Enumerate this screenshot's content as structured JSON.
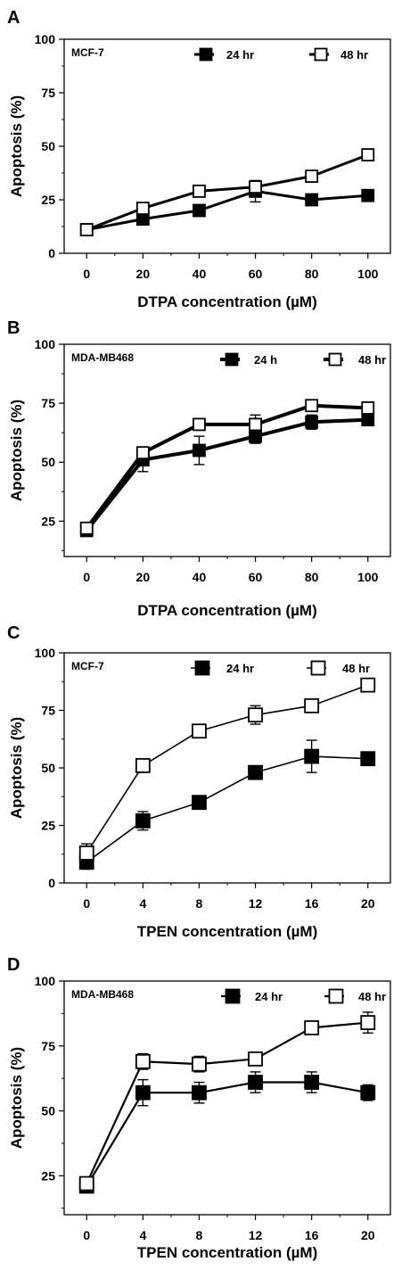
{
  "chart_data": [
    {
      "type": "line",
      "panel": "A",
      "cell_line": "MCF-7",
      "xlabel": "DTPA concentration (µM)",
      "ylabel": "Apoptosis (%)",
      "x": [
        0,
        20,
        40,
        60,
        80,
        100
      ],
      "xticks": [
        "0",
        "20",
        "40",
        "60",
        "80",
        "100"
      ],
      "yticks": [
        "0",
        "25",
        "50",
        "75",
        "100"
      ],
      "xlim": [
        -8,
        108
      ],
      "ylim": [
        0,
        100
      ],
      "legend": "top",
      "series": [
        {
          "name": "24 hr",
          "marker": "filled-square",
          "values": [
            11,
            16,
            20,
            29,
            25,
            27
          ],
          "errors": [
            1.5,
            1.5,
            1.5,
            5,
            1.5,
            1.5
          ]
        },
        {
          "name": "48 hr",
          "marker": "open-square",
          "values": [
            11,
            21,
            29,
            31,
            36,
            46
          ],
          "errors": [
            1.5,
            1.5,
            1.5,
            2.5,
            1.5,
            1.5
          ]
        }
      ]
    },
    {
      "type": "line",
      "panel": "B",
      "cell_line": "MDA-MB468",
      "xlabel": "DTPA concentration (µM)",
      "ylabel": "Apoptosis (%)",
      "x": [
        0,
        20,
        40,
        60,
        80,
        100
      ],
      "xticks": [
        "0",
        "20",
        "40",
        "60",
        "80",
        "100"
      ],
      "yticks": [
        "25",
        "50",
        "75",
        "100"
      ],
      "xlim": [
        -8,
        108
      ],
      "ylim": [
        10,
        100
      ],
      "legend": "top",
      "series": [
        {
          "name": "24 h",
          "marker": "filled-square",
          "values": [
            21,
            51,
            55,
            61,
            67,
            68
          ],
          "errors": [
            1.5,
            5,
            6,
            3,
            3,
            2
          ]
        },
        {
          "name": "48 hr",
          "marker": "open-square",
          "values": [
            22,
            54,
            66,
            66,
            74,
            73
          ],
          "errors": [
            1.5,
            2,
            2,
            4,
            2,
            2
          ]
        }
      ]
    },
    {
      "type": "line",
      "panel": "C",
      "cell_line": "MCF-7",
      "xlabel": "TPEN concentration (µM)",
      "ylabel": "Apoptosis (%)",
      "x": [
        0,
        4,
        8,
        12,
        16,
        20
      ],
      "xticks": [
        "0",
        "4",
        "8",
        "12",
        "16",
        "20"
      ],
      "yticks": [
        "0",
        "25",
        "50",
        "75",
        "100"
      ],
      "xlim": [
        -1.6,
        21.6
      ],
      "ylim": [
        0,
        100
      ],
      "legend": "top",
      "series": [
        {
          "name": "24 hr",
          "marker": "filled-square",
          "values": [
            9,
            27,
            35,
            48,
            55,
            54
          ],
          "errors": [
            3,
            4,
            2,
            2,
            7,
            2
          ]
        },
        {
          "name": "48 hr",
          "marker": "open-square",
          "values": [
            13,
            51,
            66,
            73,
            77,
            86
          ],
          "errors": [
            4,
            2,
            2,
            4,
            2,
            2
          ]
        }
      ]
    },
    {
      "type": "line",
      "panel": "D",
      "cell_line": "MDA-MB468",
      "xlabel": "TPEN concentration (µM)",
      "ylabel": "Apoptosis (%)",
      "x": [
        0,
        4,
        8,
        12,
        16,
        20
      ],
      "xticks": [
        "0",
        "4",
        "8",
        "12",
        "16",
        "20"
      ],
      "yticks": [
        "25",
        "50",
        "75",
        "100"
      ],
      "xlim": [
        -1.6,
        21.6
      ],
      "ylim": [
        10,
        100
      ],
      "legend": "top",
      "series": [
        {
          "name": "24 hr",
          "marker": "filled-square",
          "values": [
            21,
            57,
            57,
            61,
            61,
            57
          ],
          "errors": [
            2,
            5,
            4,
            4,
            4,
            3
          ]
        },
        {
          "name": "48 hr",
          "marker": "open-square",
          "values": [
            22,
            69,
            68,
            70,
            82,
            84
          ],
          "errors": [
            2,
            3,
            3,
            2,
            2,
            4
          ]
        }
      ]
    }
  ]
}
